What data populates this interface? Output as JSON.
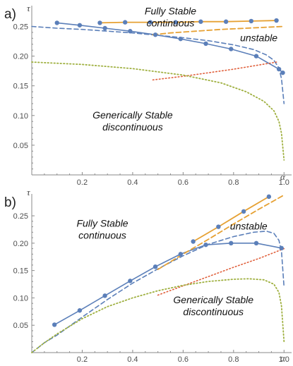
{
  "chart_data": [
    {
      "type": "line",
      "panel_label": "a)",
      "xlabel": "α",
      "ylabel": "τ",
      "xlim": [
        0,
        1.03
      ],
      "ylim": [
        0,
        0.285
      ],
      "xticks": [
        "0.2",
        "0.4",
        "0.6",
        "0.8",
        "1.0"
      ],
      "yticks": [
        "0.05",
        "0.10",
        "0.15",
        "0.20",
        "0.25"
      ],
      "colors": {
        "blue": "#5b7fb9",
        "orange": "#e6a133",
        "green": "#9fb040",
        "red": "#e0603c"
      },
      "annotations": [
        {
          "lines": [
            "Fully Stable",
            "continuous"
          ],
          "x": 0.55,
          "y": 0.27
        },
        {
          "lines": [
            "unstable"
          ],
          "x": 0.9,
          "y": 0.225
        },
        {
          "lines": [
            "Generically Stable",
            "discontinuous"
          ],
          "x": 0.4,
          "y": 0.095
        }
      ],
      "series": [
        {
          "style": "blue-solid",
          "x": [
            0.1,
            0.19,
            0.29,
            0.39,
            0.49,
            0.59,
            0.69,
            0.79,
            0.89,
            0.98,
            0.995
          ],
          "y": [
            0.256,
            0.252,
            0.247,
            0.242,
            0.236,
            0.229,
            0.221,
            0.212,
            0.2,
            0.178,
            0.172
          ]
        },
        {
          "style": "blue-dashed",
          "x": [
            0.0,
            0.1,
            0.2,
            0.3,
            0.4,
            0.5,
            0.6,
            0.7,
            0.8,
            0.88,
            0.93,
            0.96,
            0.98,
            0.99,
            1.0
          ],
          "y": [
            0.25,
            0.247,
            0.245,
            0.242,
            0.239,
            0.235,
            0.231,
            0.226,
            0.219,
            0.211,
            0.202,
            0.193,
            0.18,
            0.162,
            0.12
          ]
        },
        {
          "style": "orange-solid",
          "x": [
            0.27,
            0.37,
            0.47,
            0.57,
            0.67,
            0.77,
            0.87,
            0.97
          ],
          "y": [
            0.256,
            0.257,
            0.257,
            0.257,
            0.258,
            0.258,
            0.259,
            0.26
          ]
        },
        {
          "style": "orange-dashed",
          "x": [
            0.48,
            0.55,
            0.65,
            0.75,
            0.85,
            0.95,
            1.0
          ],
          "y": [
            0.236,
            0.239,
            0.242,
            0.245,
            0.247,
            0.249,
            0.25
          ]
        },
        {
          "style": "red-dotted",
          "x": [
            0.48,
            0.6,
            0.7,
            0.8,
            0.9,
            0.97
          ],
          "y": [
            0.16,
            0.166,
            0.172,
            0.178,
            0.185,
            0.19
          ]
        },
        {
          "style": "green-dotted",
          "x": [
            0.0,
            0.2,
            0.4,
            0.6,
            0.75,
            0.85,
            0.92,
            0.96,
            0.98,
            0.99,
            1.0
          ],
          "y": [
            0.19,
            0.186,
            0.179,
            0.168,
            0.155,
            0.14,
            0.124,
            0.108,
            0.09,
            0.07,
            0.025
          ]
        }
      ],
      "markers": [
        {
          "style": "blue",
          "x": [
            0.1,
            0.19,
            0.29,
            0.39,
            0.49,
            0.59,
            0.69,
            0.79,
            0.89,
            0.98,
            0.995
          ],
          "y": [
            0.256,
            0.252,
            0.247,
            0.242,
            0.236,
            0.229,
            0.221,
            0.212,
            0.2,
            0.178,
            0.172
          ]
        },
        {
          "style": "orange",
          "x": [
            0.27,
            0.37,
            0.47,
            0.57,
            0.67,
            0.77,
            0.87,
            0.97
          ],
          "y": [
            0.256,
            0.257,
            0.257,
            0.257,
            0.258,
            0.258,
            0.259,
            0.26
          ]
        }
      ]
    },
    {
      "type": "line",
      "panel_label": "b)",
      "xlabel": "α",
      "ylabel": "τ",
      "xlim": [
        0,
        1.03
      ],
      "ylim": [
        0,
        0.29
      ],
      "xticks": [
        "0.2",
        "0.4",
        "0.6",
        "0.8",
        "1.0"
      ],
      "yticks": [
        "0.05",
        "0.10",
        "0.15",
        "0.20",
        "0.25"
      ],
      "colors": {
        "blue": "#5b7fb9",
        "orange": "#e6a133",
        "green": "#9fb040",
        "red": "#e0603c"
      },
      "annotations": [
        {
          "lines": [
            "Fully Stable",
            "continuous"
          ],
          "x": 0.28,
          "y": 0.23
        },
        {
          "lines": [
            "unstable"
          ],
          "x": 0.86,
          "y": 0.225
        },
        {
          "lines": [
            "Generically Stable",
            "discontinuous"
          ],
          "x": 0.72,
          "y": 0.09
        }
      ],
      "series": [
        {
          "style": "blue-solid",
          "x": [
            0.09,
            0.19,
            0.29,
            0.39,
            0.49,
            0.59,
            0.69,
            0.79,
            0.89,
            0.99
          ],
          "y": [
            0.051,
            0.077,
            0.104,
            0.131,
            0.157,
            0.18,
            0.197,
            0.2,
            0.2,
            0.191
          ]
        },
        {
          "style": "blue-dashed",
          "x": [
            0.0,
            0.05,
            0.1,
            0.2,
            0.3,
            0.4,
            0.5,
            0.6,
            0.7,
            0.8,
            0.88,
            0.93,
            0.96,
            0.98,
            0.99,
            1.0
          ],
          "y": [
            0.0,
            0.018,
            0.032,
            0.065,
            0.097,
            0.127,
            0.153,
            0.177,
            0.198,
            0.212,
            0.22,
            0.222,
            0.218,
            0.205,
            0.185,
            0.12
          ]
        },
        {
          "style": "orange-solid",
          "x": [
            0.64,
            0.74,
            0.84,
            0.94
          ],
          "y": [
            0.203,
            0.23,
            0.258,
            0.285
          ]
        },
        {
          "style": "orange-dashed",
          "x": [
            0.5,
            0.6,
            0.7,
            0.8,
            0.9,
            1.0
          ],
          "y": [
            0.152,
            0.18,
            0.207,
            0.235,
            0.262,
            0.288
          ]
        },
        {
          "style": "red-dotted",
          "x": [
            0.5,
            0.6,
            0.7,
            0.8,
            0.9,
            1.0
          ],
          "y": [
            0.105,
            0.122,
            0.139,
            0.156,
            0.172,
            0.19
          ]
        },
        {
          "style": "green-dotted",
          "x": [
            0.0,
            0.05,
            0.1,
            0.2,
            0.3,
            0.4,
            0.5,
            0.6,
            0.7,
            0.8,
            0.86,
            0.92,
            0.96,
            0.98,
            0.99,
            1.0
          ],
          "y": [
            0.0,
            0.018,
            0.034,
            0.062,
            0.084,
            0.1,
            0.113,
            0.123,
            0.13,
            0.134,
            0.135,
            0.133,
            0.125,
            0.11,
            0.085,
            0.02
          ]
        }
      ],
      "markers": [
        {
          "style": "blue",
          "x": [
            0.09,
            0.19,
            0.29,
            0.39,
            0.49,
            0.59,
            0.69,
            0.79,
            0.89,
            0.99
          ],
          "y": [
            0.051,
            0.077,
            0.104,
            0.131,
            0.157,
            0.18,
            0.197,
            0.2,
            0.2,
            0.191
          ]
        },
        {
          "style": "orange",
          "x": [
            0.64,
            0.74,
            0.84,
            0.94
          ],
          "y": [
            0.203,
            0.23,
            0.258,
            0.285
          ]
        }
      ]
    }
  ]
}
